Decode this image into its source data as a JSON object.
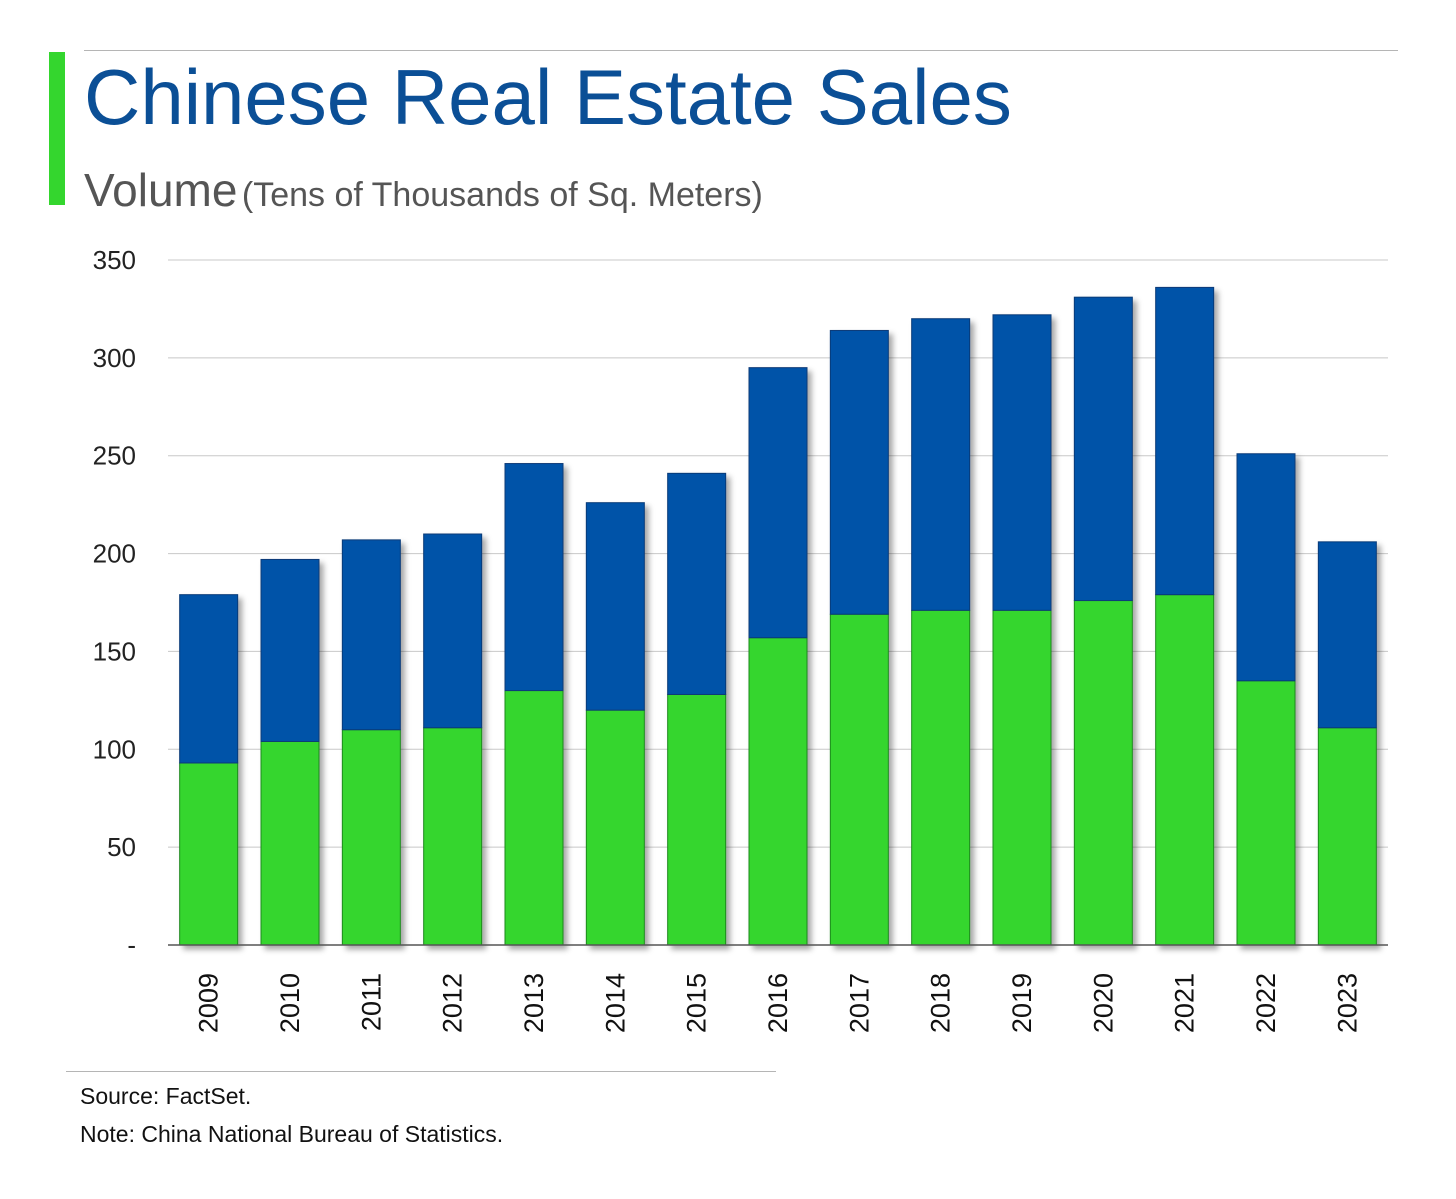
{
  "header": {
    "title": "Chinese Real Estate Sales",
    "subtitle_main": "Volume",
    "subtitle_unit": "(Tens of Thousands of Sq. Meters)"
  },
  "footer": {
    "source": "Source: FactSet.",
    "note": "Note: China National Bureau of Statistics."
  },
  "colors": {
    "accent": "#34d62e",
    "title": "#0b4f96",
    "series_bottom": "#34d62e",
    "series_top": "#0052a8"
  },
  "chart_data": {
    "type": "bar",
    "stacked": true,
    "categories": [
      "2009",
      "2010",
      "2011",
      "2012",
      "2013",
      "2014",
      "2015",
      "2016",
      "2017",
      "2018",
      "2019",
      "2020",
      "2021",
      "2022",
      "2023"
    ],
    "series": [
      {
        "values": [
          93,
          104,
          110,
          111,
          130,
          120,
          128,
          157,
          169,
          171,
          171,
          176,
          179,
          135,
          111
        ],
        "color": "#34d62e"
      },
      {
        "values": [
          86,
          93,
          97,
          99,
          116,
          106,
          113,
          138,
          145,
          149,
          151,
          155,
          157,
          116,
          95
        ],
        "color": "#0052a8"
      }
    ],
    "ylim": [
      0,
      350
    ],
    "yticks": [
      0,
      50,
      100,
      150,
      200,
      250,
      300,
      350
    ],
    "ytick_labels": [
      "-",
      "50",
      "100",
      "150",
      "200",
      "250",
      "300",
      "350"
    ],
    "grid": true,
    "legend": "none"
  }
}
